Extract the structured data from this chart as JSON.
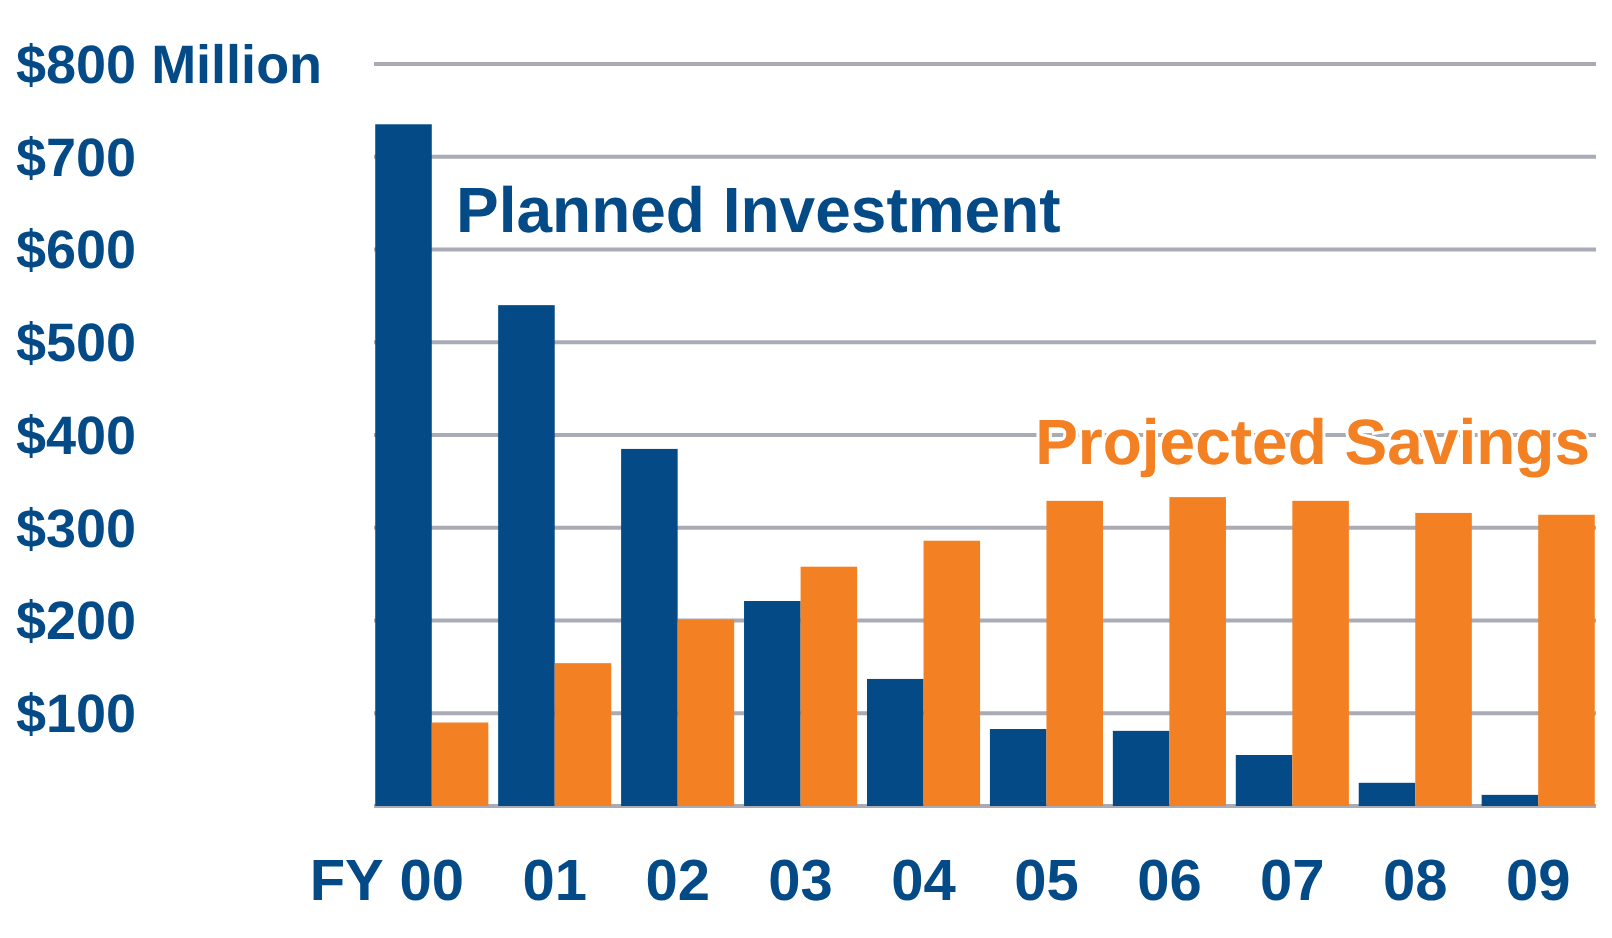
{
  "chart_data": {
    "type": "bar",
    "xlabel": "FY",
    "categories": [
      "00",
      "01",
      "02",
      "03",
      "04",
      "05",
      "06",
      "07",
      "08",
      "09"
    ],
    "series": [
      {
        "name": "Planned Investment",
        "color": "#034a87",
        "values": [
          735,
          540,
          385,
          221,
          137,
          83,
          81,
          55,
          25,
          12
        ]
      },
      {
        "name": "Projected Savings",
        "color": "#f38022",
        "values": [
          90,
          154,
          201,
          258,
          286,
          329,
          333,
          329,
          316,
          314
        ]
      }
    ],
    "ylim": [
      0,
      800
    ],
    "yticks": [
      {
        "value": 100,
        "label": "$100"
      },
      {
        "value": 200,
        "label": "$200"
      },
      {
        "value": 300,
        "label": "$300"
      },
      {
        "value": 400,
        "label": "$400"
      },
      {
        "value": 500,
        "label": "$500"
      },
      {
        "value": 600,
        "label": "$600"
      },
      {
        "value": 700,
        "label": "$700"
      },
      {
        "value": 800,
        "label": "$800 Million"
      }
    ],
    "grid": "y"
  }
}
